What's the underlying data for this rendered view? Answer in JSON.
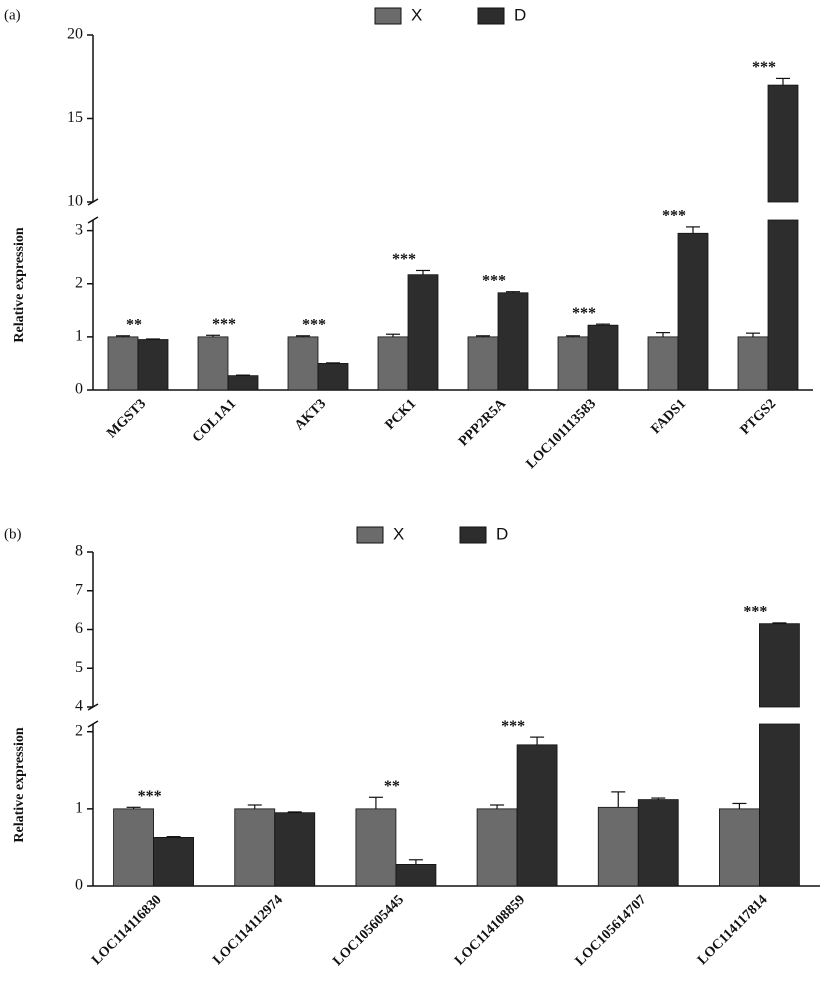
{
  "chart_data": [
    {
      "type": "bar",
      "panel": "(a)",
      "ylabel": "Relative expression",
      "categories": [
        "MGST3",
        "COL1A1",
        "AKT3",
        "PCK1",
        "PPP2R5A",
        "LOC101113583",
        "FADS1",
        "PTGS2"
      ],
      "series": [
        {
          "name": "X",
          "color": "#6b6b6b",
          "values": [
            1.0,
            1.0,
            1.0,
            1.0,
            1.0,
            1.0,
            1.0,
            1.0
          ],
          "errors": [
            0.02,
            0.03,
            0.02,
            0.05,
            0.02,
            0.02,
            0.08,
            0.07
          ]
        },
        {
          "name": "D",
          "color": "#2d2d2d",
          "values": [
            0.95,
            0.27,
            0.5,
            2.17,
            1.83,
            1.22,
            2.95,
            17.0
          ],
          "errors": [
            0.01,
            0.01,
            0.01,
            0.08,
            0.02,
            0.02,
            0.12,
            0.4
          ]
        }
      ],
      "significance": [
        "**",
        "***",
        "***",
        "***",
        "***",
        "***",
        "***",
        "***"
      ],
      "segments": [
        {
          "ylim": [
            0,
            3.2
          ],
          "yticks": [
            0,
            1,
            2,
            3
          ]
        },
        {
          "ylim": [
            10,
            20
          ],
          "yticks": [
            10,
            15,
            20
          ]
        }
      ]
    },
    {
      "type": "bar",
      "panel": "(b)",
      "ylabel": "Relative expression",
      "categories": [
        "LOC114116830",
        "LOC114112974",
        "LOC105605445",
        "LOC114108859",
        "LOC105614707",
        "LOC114117814"
      ],
      "series": [
        {
          "name": "X",
          "color": "#6b6b6b",
          "values": [
            1.0,
            1.0,
            1.0,
            1.0,
            1.02,
            1.0
          ],
          "errors": [
            0.02,
            0.05,
            0.15,
            0.05,
            0.2,
            0.07
          ]
        },
        {
          "name": "D",
          "color": "#2d2d2d",
          "values": [
            0.63,
            0.95,
            0.28,
            1.83,
            1.12,
            6.15
          ],
          "errors": [
            0.01,
            0.01,
            0.06,
            0.1,
            0.02,
            0.02
          ]
        }
      ],
      "significance": [
        "***",
        null,
        "**",
        "***",
        null,
        "***"
      ],
      "segments": [
        {
          "ylim": [
            0,
            2.1
          ],
          "yticks": [
            0,
            1,
            2
          ]
        },
        {
          "ylim": [
            4,
            8
          ],
          "yticks": [
            4,
            5,
            6,
            7,
            8
          ]
        }
      ]
    }
  ]
}
